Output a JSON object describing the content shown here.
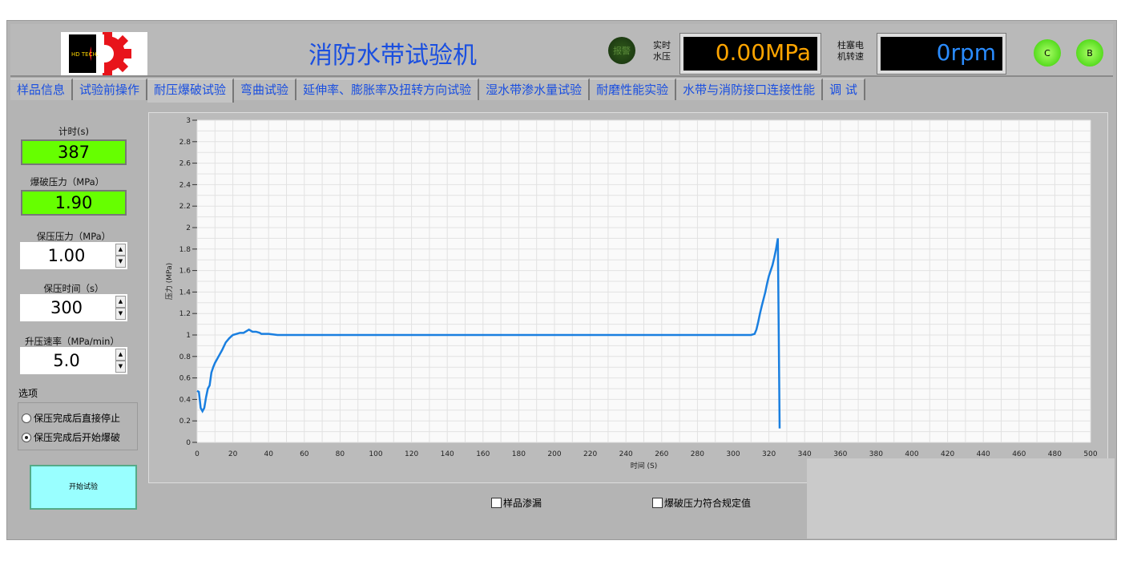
{
  "header": {
    "title": "消防水带试验机",
    "logo_text": "HD TECH.",
    "alarm_label": "报警",
    "pressure_label_1": "实时",
    "pressure_label_2": "水压",
    "pressure_value": "0.00MPa",
    "speed_label_1": "柱塞电",
    "speed_label_2": "机转速",
    "speed_value": "0rpm",
    "led_c": "C",
    "led_b": "B"
  },
  "tabs": [
    {
      "label": "样品信息"
    },
    {
      "label": "试验前操作"
    },
    {
      "label": "耐压爆破试验",
      "active": true
    },
    {
      "label": "弯曲试验"
    },
    {
      "label": "延伸率、膨胀率及扭转方向试验"
    },
    {
      "label": "湿水带渗水量试验"
    },
    {
      "label": "耐磨性能实验"
    },
    {
      "label": "水带与消防接口连接性能"
    },
    {
      "label": "调 试"
    }
  ],
  "left": {
    "timer_label": "计时(s)",
    "timer_value": "387",
    "burst_label": "爆破压力（MPa）",
    "burst_value": "1.90",
    "hold_pressure_label": "保压压力（MPa）",
    "hold_pressure_value": "1.00",
    "hold_time_label": "保压时间（s）",
    "hold_time_value": "300",
    "rate_label": "升压速率（MPa/min）",
    "rate_value": "5.0",
    "options_label": "选项",
    "option_1": "保压完成后直接停止",
    "option_2": "保压完成后开始爆破",
    "selected_option": 2,
    "start_button": "开始试验"
  },
  "checks": {
    "leak": "样品渗漏",
    "burst_ok": "爆破压力符合规定值"
  },
  "colors": {
    "line": "#1a7fe0",
    "indicator": "#66ff00",
    "pressure_text": "#ffa500",
    "speed_text": "#2a8cff"
  },
  "chart_data": {
    "type": "line",
    "xlabel": "时间 (S)",
    "ylabel": "压力 (MPa)",
    "xlim": [
      0,
      500
    ],
    "ylim": [
      0,
      3
    ],
    "grid": true,
    "x_ticks": [
      0,
      20,
      40,
      60,
      80,
      100,
      120,
      140,
      160,
      180,
      200,
      220,
      240,
      260,
      280,
      300,
      320,
      340,
      360,
      380,
      400,
      420,
      440,
      460,
      480,
      500
    ],
    "y_ticks": [
      "0",
      "0.2",
      "0.4",
      "0.6",
      "0.8",
      "1",
      "1.2",
      "1.4",
      "1.6",
      "1.8",
      "2",
      "2.2",
      "2.4",
      "2.6",
      "2.8",
      "3"
    ],
    "series": [
      {
        "x": [
          0,
          1,
          2,
          3,
          4,
          5,
          6,
          7,
          8,
          9,
          10,
          12,
          14,
          16,
          18,
          20,
          22,
          24,
          26,
          28,
          29,
          31,
          33,
          35,
          36,
          40,
          45,
          50,
          60,
          80,
          100,
          120,
          140,
          160,
          180,
          200,
          220,
          240,
          260,
          280,
          300,
          310,
          312,
          313,
          314,
          315,
          316,
          318,
          319,
          320,
          321,
          322,
          323,
          324,
          325,
          326
        ],
        "y": [
          0.48,
          0.47,
          0.32,
          0.29,
          0.32,
          0.42,
          0.5,
          0.53,
          0.65,
          0.7,
          0.74,
          0.8,
          0.86,
          0.93,
          0.97,
          1.0,
          1.01,
          1.02,
          1.02,
          1.04,
          1.05,
          1.03,
          1.03,
          1.02,
          1.01,
          1.01,
          1.0,
          1.0,
          1.0,
          1.0,
          1.0,
          1.0,
          1.0,
          1.0,
          1.0,
          1.0,
          1.0,
          1.0,
          1.0,
          1.0,
          1.0,
          1.0,
          1.01,
          1.05,
          1.12,
          1.2,
          1.27,
          1.4,
          1.48,
          1.55,
          1.6,
          1.65,
          1.72,
          1.8,
          1.9,
          0.13
        ]
      }
    ]
  }
}
